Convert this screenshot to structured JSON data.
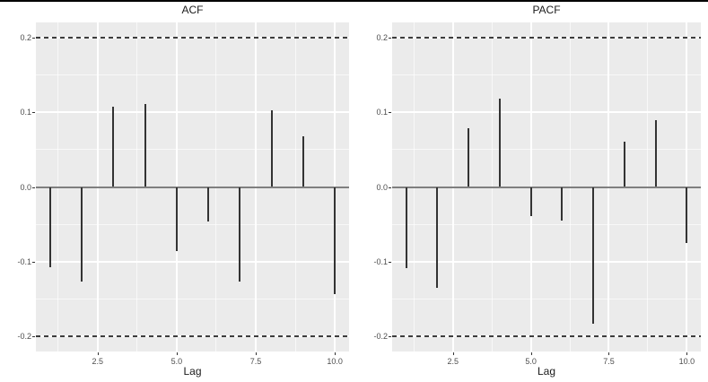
{
  "page": {
    "background_color": "#ffffff",
    "top_border_color": "#000000"
  },
  "theme": {
    "panel_background": "#EBEBEB",
    "grid_major_color": "#FFFFFF",
    "grid_minor_color": "rgba(255,255,255,0.65)",
    "spike_color": "#333333",
    "zero_line_color": "#7F7F7F",
    "dashed_band_color": "#3D3D3D",
    "axis_text_color": "#4D4D4D",
    "tick_mark_color": "#333333",
    "title_color": "#1a1a1a"
  },
  "chart_data": [
    {
      "type": "bar",
      "title": "ACF",
      "xlabel": "Lag",
      "ylabel": "",
      "x": [
        1,
        2,
        3,
        4,
        5,
        6,
        7,
        8,
        9,
        10
      ],
      "values": [
        -0.107,
        -0.126,
        0.107,
        0.111,
        -0.086,
        -0.046,
        -0.127,
        0.102,
        0.068,
        -0.143
      ],
      "conf_bands": [
        0.2,
        -0.2
      ],
      "xlim": [
        0.55,
        10.45
      ],
      "ylim": [
        -0.22,
        0.22
      ],
      "x_ticks": [
        2.5,
        5.0,
        7.5,
        10.0
      ],
      "x_tick_labels": [
        "2.5",
        "5.0",
        "7.5",
        "10.0"
      ],
      "x_minor_ticks": [
        1.25,
        3.75,
        6.25,
        8.75
      ],
      "y_ticks": [
        -0.2,
        -0.1,
        0.0,
        0.1,
        0.2
      ],
      "y_tick_labels": [
        "-0.2",
        "-0.1",
        "0.0",
        "0.1",
        "0.2"
      ],
      "y_minor_ticks": [
        -0.15,
        -0.05,
        0.05,
        0.15
      ],
      "grid": true,
      "legend": "none"
    },
    {
      "type": "bar",
      "title": "PACF",
      "xlabel": "Lag",
      "ylabel": "",
      "x": [
        1,
        2,
        3,
        4,
        5,
        6,
        7,
        8,
        9,
        10
      ],
      "values": [
        -0.108,
        -0.135,
        0.078,
        0.118,
        -0.039,
        -0.045,
        -0.183,
        0.06,
        0.089,
        -0.075
      ],
      "conf_bands": [
        0.2,
        -0.2
      ],
      "xlim": [
        0.55,
        10.45
      ],
      "ylim": [
        -0.22,
        0.22
      ],
      "x_ticks": [
        2.5,
        5.0,
        7.5,
        10.0
      ],
      "x_tick_labels": [
        "2.5",
        "5.0",
        "7.5",
        "10.0"
      ],
      "x_minor_ticks": [
        1.25,
        3.75,
        6.25,
        8.75
      ],
      "y_ticks": [
        -0.2,
        -0.1,
        0.0,
        0.1,
        0.2
      ],
      "y_tick_labels": [
        "-0.2",
        "-0.1",
        "0.0",
        "0.1",
        "0.2"
      ],
      "y_minor_ticks": [
        -0.15,
        -0.05,
        0.05,
        0.15
      ],
      "grid": true,
      "legend": "none"
    }
  ]
}
